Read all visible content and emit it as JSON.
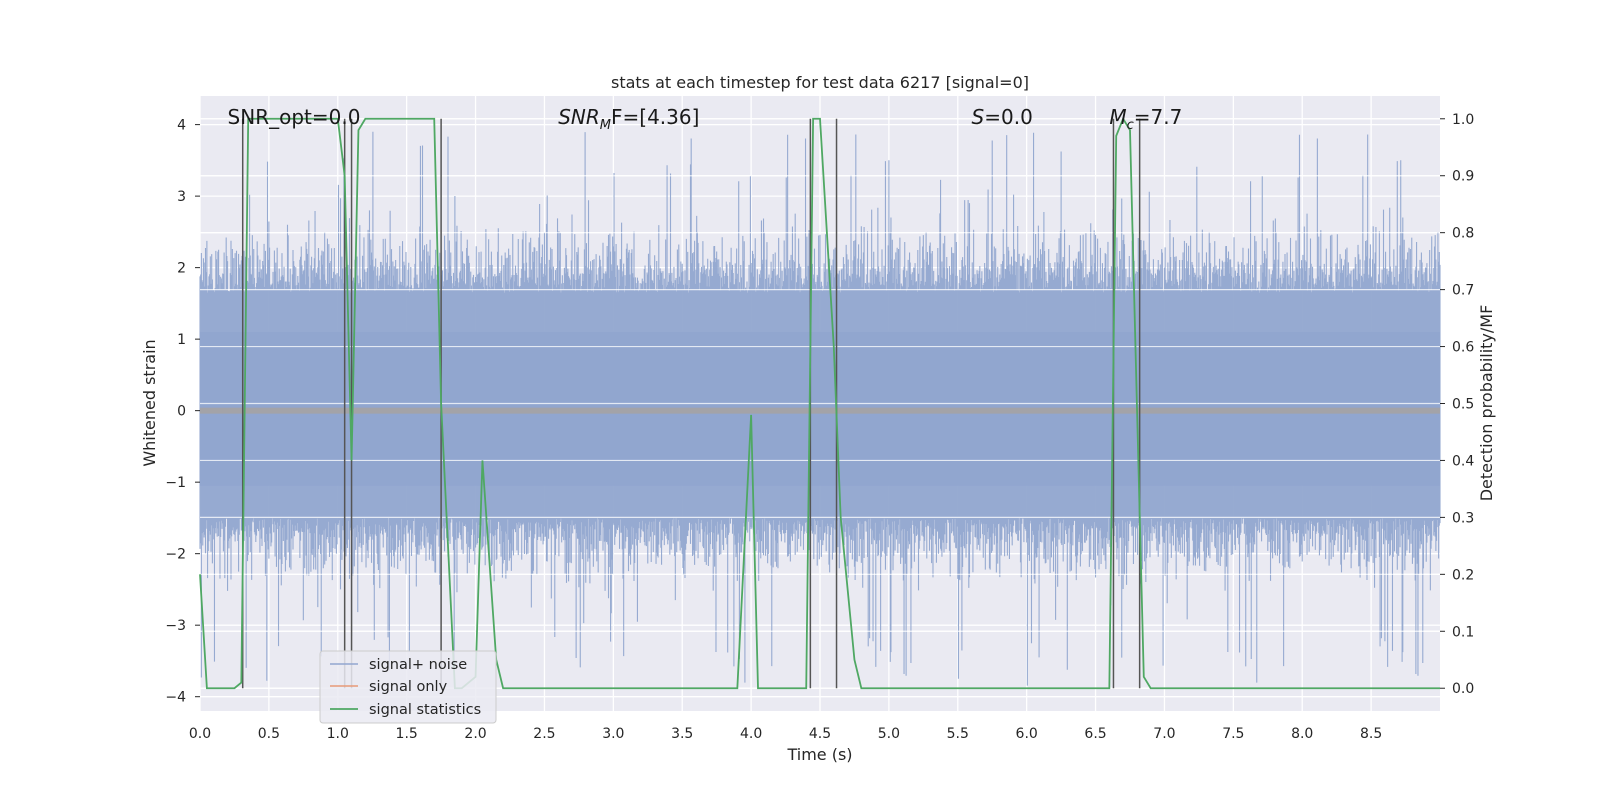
{
  "chart_data": {
    "type": "line",
    "title": "stats at each timestep for test data 6217 [signal=0]",
    "xlabel": "Time (s)",
    "ylabel_left": "Whitened strain",
    "ylabel_right": "Detection probability/MF",
    "xlim": [
      0,
      9
    ],
    "ylim_left": [
      -4.2,
      4.4
    ],
    "ylim_right": [
      -0.04,
      1.04
    ],
    "x_ticks": [
      0.0,
      0.5,
      1.0,
      1.5,
      2.0,
      2.5,
      3.0,
      3.5,
      4.0,
      4.5,
      5.0,
      5.5,
      6.0,
      6.5,
      7.0,
      7.5,
      8.0,
      8.5
    ],
    "x_tick_labels": [
      "0.0",
      "0.5",
      "1.0",
      "1.5",
      "2.0",
      "2.5",
      "3.0",
      "3.5",
      "4.0",
      "4.5",
      "5.0",
      "5.5",
      "6.0",
      "6.5",
      "7.0",
      "7.5",
      "8.0",
      "8.5"
    ],
    "y_ticks_left": [
      4,
      3,
      2,
      1,
      0,
      -1,
      -2,
      -3,
      -4
    ],
    "y_tick_labels_left": [
      "4",
      "3",
      "2",
      "1",
      "0",
      "−1",
      "−2",
      "−3",
      "−4"
    ],
    "y_ticks_right": [
      1.0,
      0.9,
      0.8,
      0.7,
      0.6,
      0.5,
      0.4,
      0.3,
      0.2,
      0.1,
      0.0
    ],
    "y_tick_labels_right": [
      "1.0",
      "0.9",
      "0.8",
      "0.7",
      "0.6",
      "0.5",
      "0.4",
      "0.3",
      "0.2",
      "0.1",
      "0.0"
    ],
    "annotations": {
      "snr_opt": {
        "x": 0.2,
        "text": "SNR_opt=0.0"
      },
      "snr_mf": {
        "x": 2.6,
        "prefix": "SNR",
        "sub": "M",
        "suffix": "F=[4.36]"
      },
      "s": {
        "x": 5.6,
        "var": "S",
        "suffix": "=0.0"
      },
      "mc": {
        "x": 6.6,
        "var": "M",
        "sub": "c",
        "suffix": "=7.7"
      }
    },
    "series": [
      {
        "name": "signal+ noise",
        "axis": "left",
        "color": "#91a6cf",
        "noise_band": {
          "x_start": 0.0,
          "x_end": 9.0,
          "center": 0.0,
          "typical_low": -1.5,
          "typical_high": 1.65,
          "max_extreme": 3.9,
          "min_extreme": -3.85
        }
      },
      {
        "name": "signal only",
        "axis": "left",
        "color": "#e89a78",
        "x": [
          0.0,
          9.0
        ],
        "y": [
          0.0,
          0.0
        ]
      },
      {
        "name": "signal statistics",
        "axis": "right",
        "color": "#4fa863",
        "x": [
          0.0,
          0.05,
          0.25,
          0.3,
          0.35,
          1.0,
          1.05,
          1.1,
          1.15,
          1.2,
          1.7,
          1.75,
          1.85,
          1.9,
          2.0,
          2.05,
          2.15,
          2.2,
          3.9,
          4.0,
          4.05,
          4.1,
          4.4,
          4.45,
          4.5,
          4.6,
          4.65,
          4.75,
          4.8,
          6.4,
          6.5,
          6.6,
          6.65,
          6.7,
          6.75,
          6.8,
          6.85,
          6.9,
          9.0
        ],
        "y": [
          0.2,
          0.0,
          0.0,
          0.01,
          1.0,
          1.0,
          0.9,
          0.4,
          0.98,
          1.0,
          1.0,
          0.5,
          0.0,
          0.0,
          0.02,
          0.4,
          0.05,
          0.0,
          0.0,
          0.48,
          0.0,
          0.0,
          0.0,
          1.0,
          1.0,
          0.6,
          0.3,
          0.05,
          0.0,
          0.0,
          0.0,
          0.0,
          0.97,
          1.0,
          0.98,
          0.5,
          0.02,
          0.0,
          0.0
        ]
      }
    ],
    "vertical_lines": {
      "color": "#555555",
      "axis_range": [
        0.0,
        1.0
      ],
      "x": [
        0.31,
        1.05,
        1.1,
        1.75,
        4.43,
        4.62,
        6.63,
        6.82
      ]
    }
  }
}
